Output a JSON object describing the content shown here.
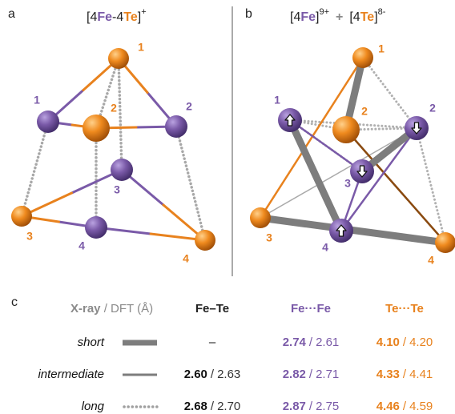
{
  "panel_a": {
    "label": "a",
    "formula": {
      "open": "[4",
      "fe": "Fe",
      "mid": "-4",
      "te": "Te",
      "close": "]",
      "charge": "+"
    },
    "te_labels": [
      "1",
      "2",
      "3",
      "4"
    ],
    "fe_labels": [
      "1",
      "2",
      "3",
      "4"
    ]
  },
  "panel_b": {
    "label": "b",
    "fe_part": {
      "open": "[4",
      "el": "Fe",
      "close": "]",
      "charge": "9+"
    },
    "plus": "+",
    "te_part": {
      "open": "[4",
      "el": "Te",
      "close": "]",
      "charge": "8-"
    },
    "te_labels": [
      "1",
      "2",
      "3",
      "4"
    ],
    "fe_labels": [
      "1",
      "2",
      "3",
      "4"
    ]
  },
  "table": {
    "label": "c",
    "header": {
      "xray": "X-ray",
      "dft": "/ DFT (Å)",
      "columns": [
        "Fe–Te",
        "Fe···Fe",
        "Te···Te"
      ]
    },
    "separator": "/",
    "rows": [
      {
        "name": "short",
        "cells": [
          {
            "text": "–"
          },
          {
            "xray": "2.74",
            "dft": "2.61"
          },
          {
            "xray": "4.10",
            "dft": "4.20"
          }
        ]
      },
      {
        "name": "intermediate",
        "cells": [
          {
            "xray": "2.60",
            "dft": "2.63"
          },
          {
            "xray": "2.82",
            "dft": "2.71"
          },
          {
            "xray": "4.33",
            "dft": "4.41"
          }
        ]
      },
      {
        "name": "long",
        "cells": [
          {
            "xray": "2.68",
            "dft": "2.70"
          },
          {
            "xray": "2.87",
            "dft": "2.75"
          },
          {
            "xray": "4.46",
            "dft": "4.59"
          }
        ]
      }
    ]
  }
}
